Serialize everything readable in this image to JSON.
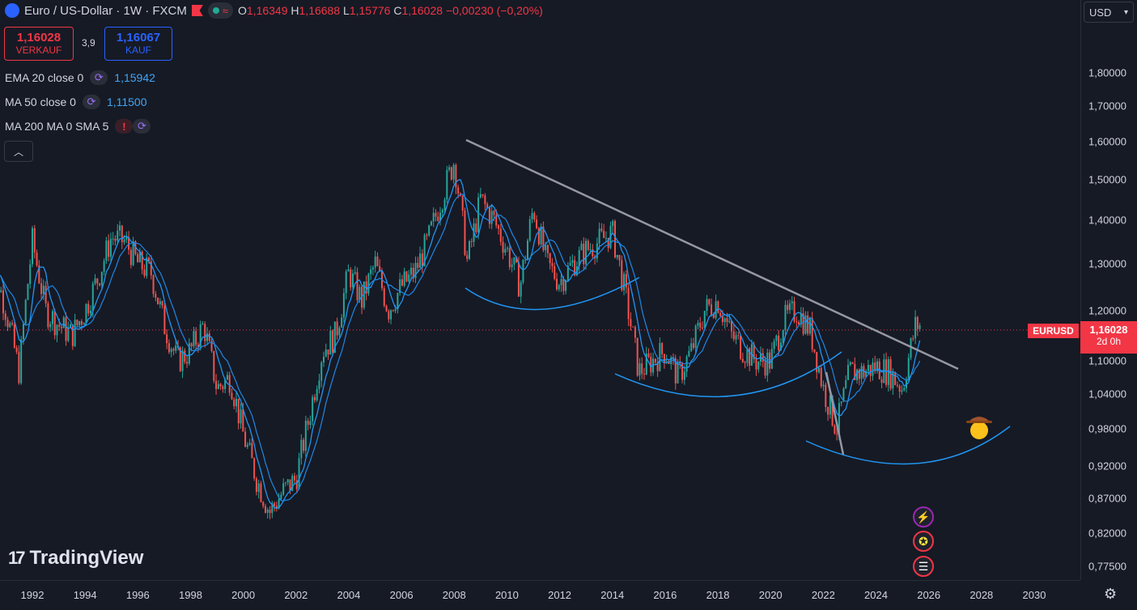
{
  "header": {
    "title": "Euro / US-Dollar · 1W · FXCM",
    "ohlc": [
      {
        "k": "O",
        "v": "1,16349"
      },
      {
        "k": "H",
        "v": "1,16688"
      },
      {
        "k": "L",
        "v": "1,15776"
      },
      {
        "k": "C",
        "v": "1,16028"
      }
    ],
    "change": "−0,00230 (−0,20%)"
  },
  "trade": {
    "sell_price": "1,16028",
    "sell_label": "VERKAUF",
    "spread": "3,9",
    "buy_price": "1,16067",
    "buy_label": "KAUF"
  },
  "indicators": [
    {
      "name": "EMA 20 close 0",
      "value": "1,15942"
    },
    {
      "name": "MA 50 close 0",
      "value": "1,11500"
    },
    {
      "name": "MA 200 MA 0 SMA 5",
      "value": ""
    }
  ],
  "currency": "USD",
  "symbol_label": "EURUSD",
  "last_price": "1,16028",
  "countdown": "2d 0h",
  "brand": "TradingView",
  "price_ticks": [
    "1,80000",
    "1,70000",
    "1,60000",
    "1,50000",
    "1,40000",
    "1,30000",
    "1,20000",
    "1,10000",
    "1,04000",
    "0,98000",
    "0,92000",
    "0,87000",
    "0,82000",
    "0,77500"
  ],
  "time_ticks": [
    "1992",
    "1994",
    "1996",
    "1998",
    "2000",
    "2002",
    "2004",
    "2006",
    "2008",
    "2010",
    "2012",
    "2014",
    "2016",
    "2018",
    "2020",
    "2022",
    "2024",
    "2026",
    "2028",
    "2030"
  ],
  "colors": {
    "up": "#26a69a",
    "down": "#ef5350",
    "ma": "#2196f3",
    "trend": "#9598a1",
    "accent": "#f23645"
  },
  "chart_data": {
    "type": "candlestick",
    "series": [
      {
        "name": "EURUSD",
        "x": [
          1990.5,
          1991,
          1991.5,
          1992,
          1992.5,
          1993,
          1993.5,
          1994,
          1994.5,
          1995,
          1995.5,
          1996,
          1996.5,
          1997,
          1997.5,
          1998,
          1998.5,
          1999,
          1999.5,
          2000,
          2000.5,
          2001,
          2001.5,
          2002,
          2002.5,
          2003,
          2003.5,
          2004,
          2004.5,
          2005,
          2005.5,
          2006,
          2006.5,
          2007,
          2007.5,
          2008,
          2008.5,
          2009,
          2009.5,
          2010,
          2010.5,
          2011,
          2011.5,
          2012,
          2012.5,
          2013,
          2013.5,
          2014,
          2014.5,
          2015,
          2015.5,
          2016,
          2016.5,
          2017,
          2017.5,
          2018,
          2018.5,
          2019,
          2019.5,
          2020,
          2020.5,
          2021,
          2021.5,
          2022,
          2022.5,
          2023,
          2023.5,
          2024,
          2024.5,
          2025,
          2025.5
        ],
        "values": [
          1.3,
          1.2,
          1.08,
          1.35,
          1.2,
          1.17,
          1.15,
          1.2,
          1.27,
          1.36,
          1.35,
          1.3,
          1.28,
          1.17,
          1.1,
          1.12,
          1.17,
          1.05,
          1.07,
          0.97,
          0.9,
          0.85,
          0.88,
          0.9,
          1.0,
          1.12,
          1.15,
          1.28,
          1.22,
          1.3,
          1.2,
          1.25,
          1.28,
          1.35,
          1.45,
          1.55,
          1.3,
          1.45,
          1.4,
          1.33,
          1.25,
          1.43,
          1.3,
          1.26,
          1.3,
          1.33,
          1.35,
          1.37,
          1.23,
          1.08,
          1.1,
          1.12,
          1.07,
          1.12,
          1.2,
          1.22,
          1.15,
          1.12,
          1.1,
          1.1,
          1.18,
          1.2,
          1.16,
          1.05,
          0.98,
          1.08,
          1.08,
          1.09,
          1.08,
          1.05,
          1.17
        ]
      }
    ],
    "y_scale": "log",
    "ylim": [
      0.75,
      1.85
    ],
    "xlim": [
      1990.3,
      2030.8
    ],
    "last_price": 1.16028,
    "peak": {
      "x": 2008.55,
      "y": 1.6
    }
  }
}
